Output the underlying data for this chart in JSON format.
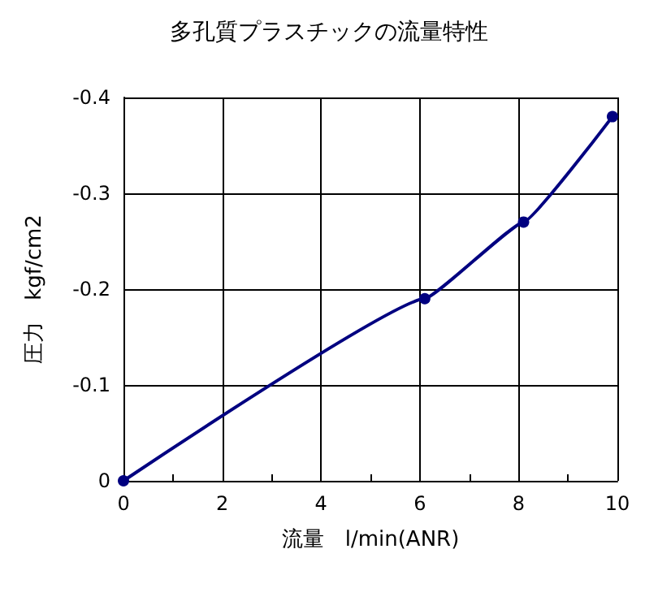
{
  "chart_data": {
    "type": "line",
    "title": "多孔質プラスチックの流量特性",
    "xlabel": "流量　l/min(ANR)",
    "ylabel": "圧力　kgf/cm2",
    "x": [
      0,
      6.1,
      8.1,
      9.9
    ],
    "series": [
      {
        "color": "#000080",
        "values": [
          0,
          -0.19,
          -0.27,
          -0.38
        ]
      }
    ],
    "xlim": [
      0,
      10
    ],
    "xticks": [
      0,
      2,
      4,
      6,
      8,
      10
    ],
    "ylim": [
      0,
      -0.4
    ],
    "yticks": [
      0,
      -0.1,
      -0.2,
      -0.3,
      -0.4
    ],
    "grid": true,
    "marker": "circle",
    "line_style": "solid"
  }
}
